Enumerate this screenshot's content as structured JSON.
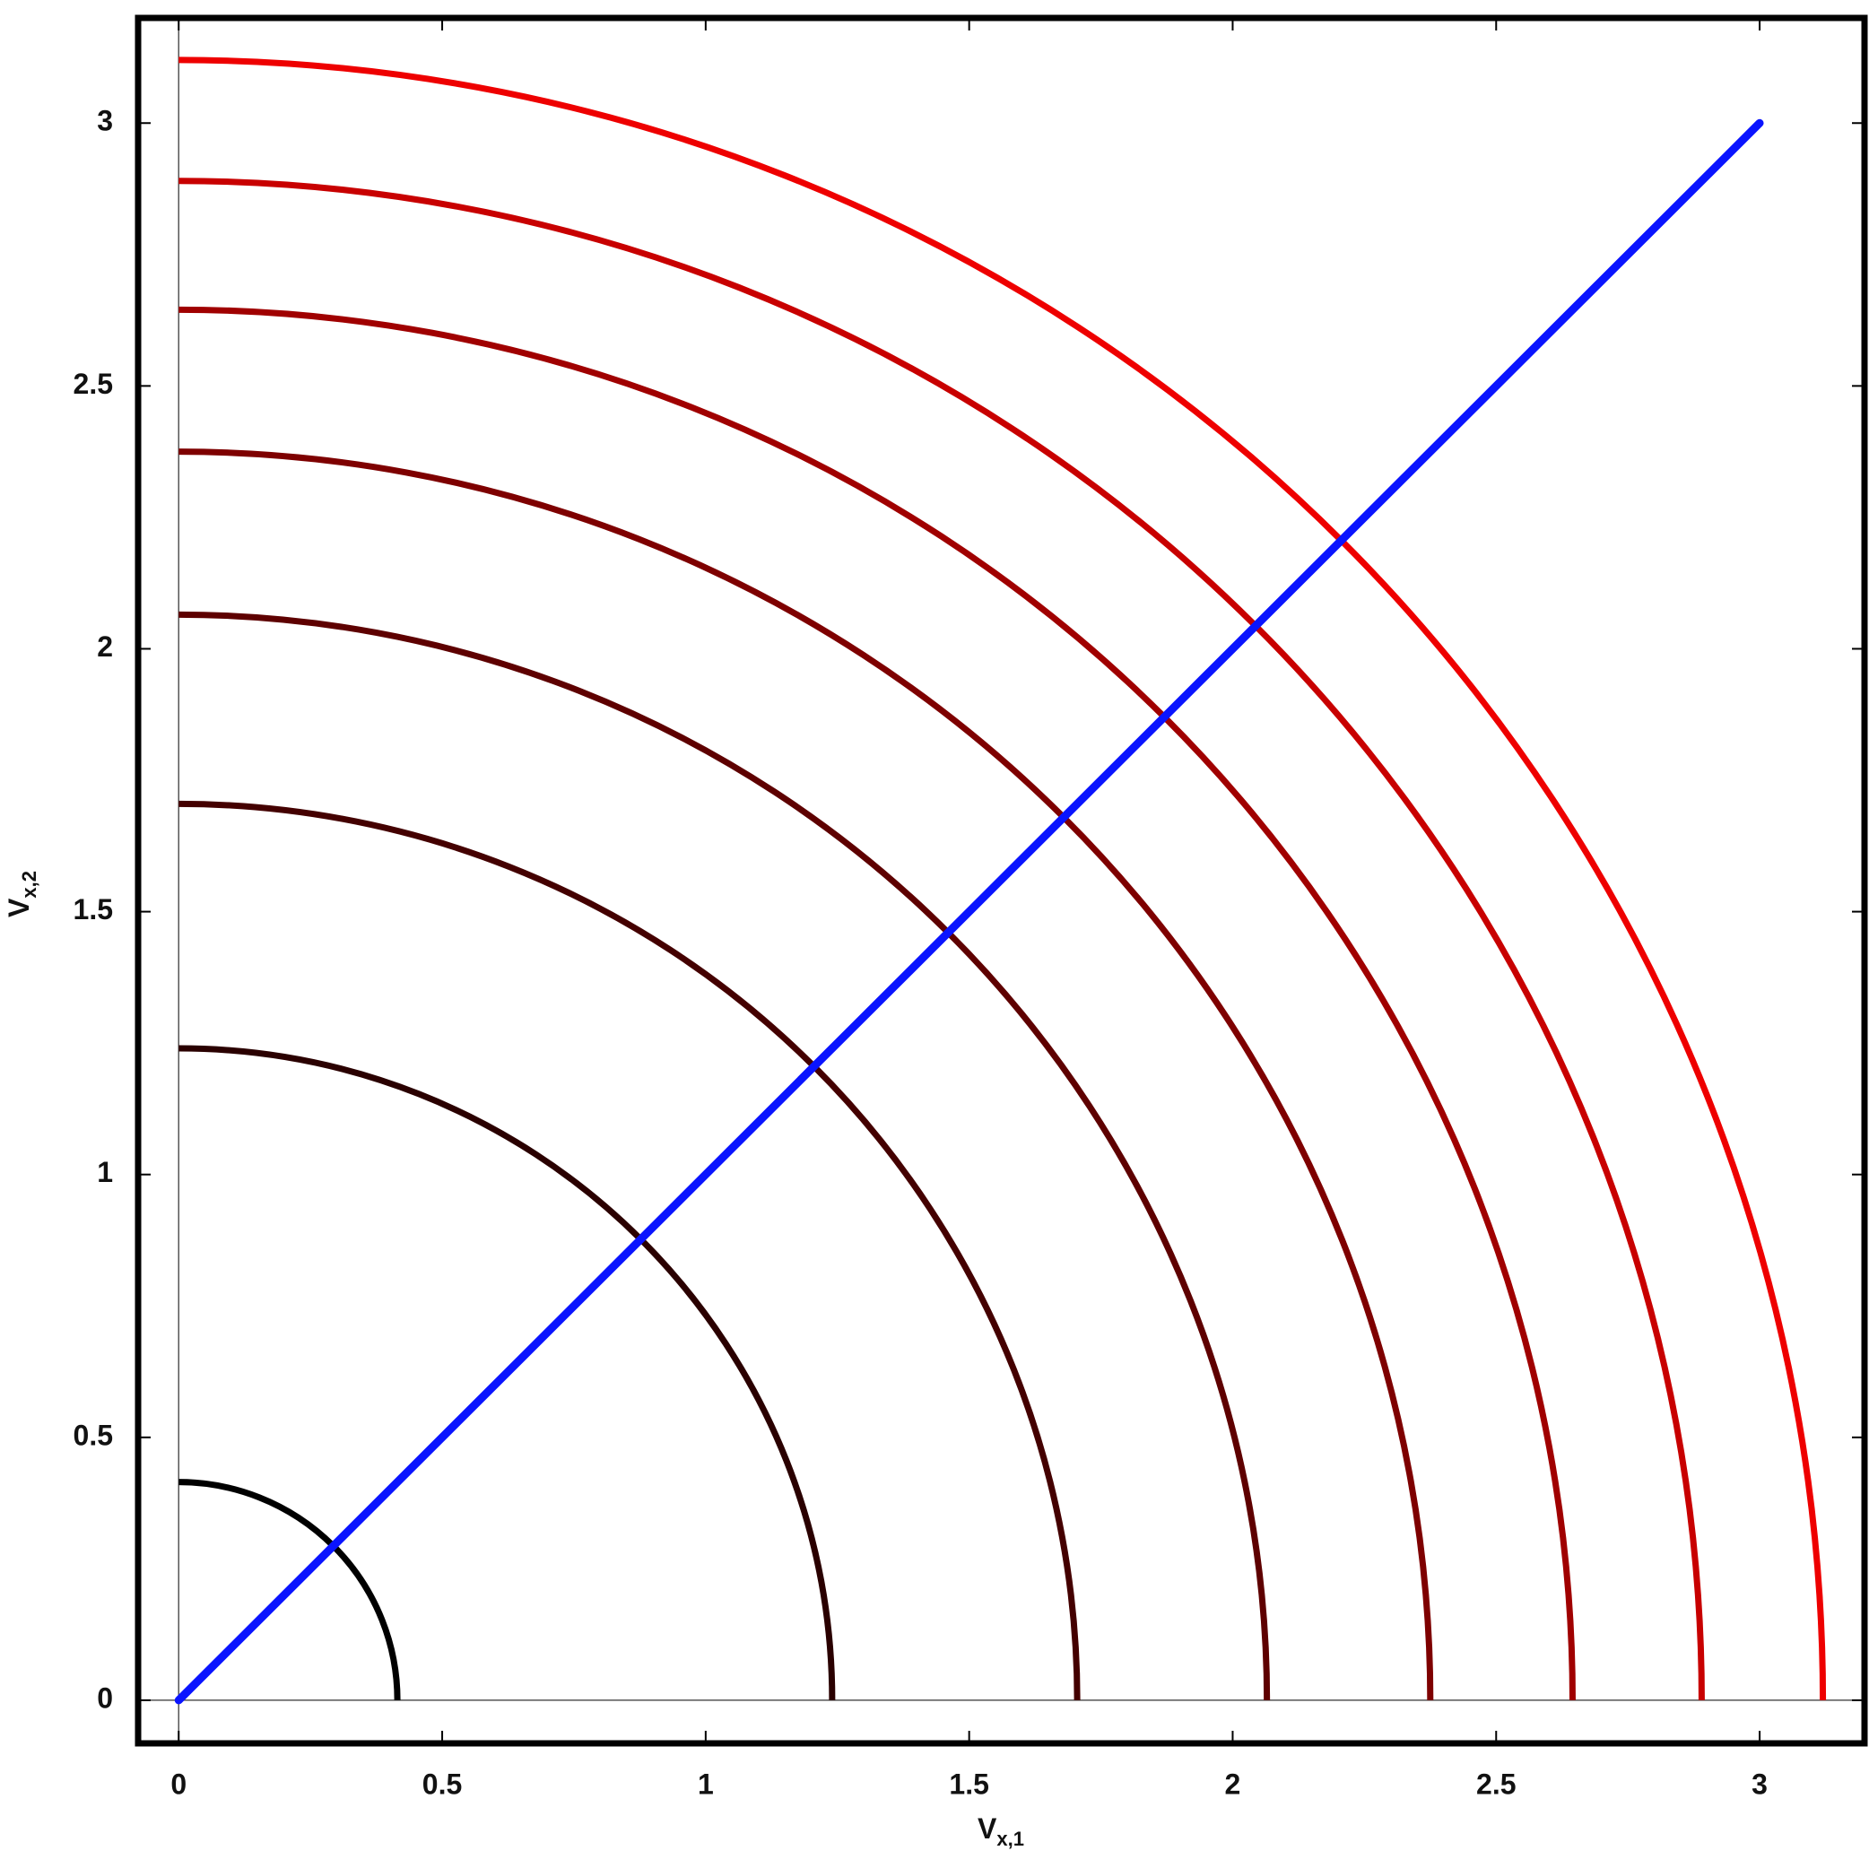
{
  "chart_data": {
    "type": "contour",
    "x_label": {
      "text": "V",
      "subscript": "x,1"
    },
    "y_label": {
      "text": "V",
      "subscript": "x,2"
    },
    "xlim": [
      -0.077,
      3.199
    ],
    "ylim": [
      -0.082,
      3.2
    ],
    "xticks": [
      0,
      0.5,
      1,
      1.5,
      2,
      2.5,
      3
    ],
    "yticks": [
      0,
      0.5,
      1,
      1.5,
      2,
      2.5,
      3
    ],
    "contours": {
      "levels": [
        0.415,
        1.24,
        1.705,
        2.065,
        2.375,
        2.645,
        2.89,
        3.12
      ],
      "colors": [
        "#000000",
        "#2a0000",
        "#440000",
        "#5e0000",
        "#7e0000",
        "#a00000",
        "#c80000",
        "#ee0000"
      ]
    },
    "series": [
      {
        "color": "#0a14ff",
        "x": [
          0,
          3
        ],
        "values": [
          0,
          3
        ]
      }
    ]
  }
}
